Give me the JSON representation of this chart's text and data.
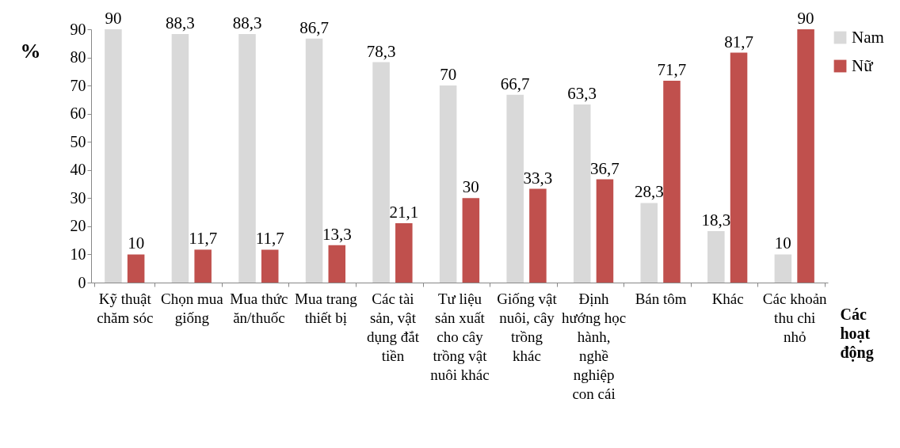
{
  "chart_data": {
    "type": "bar",
    "xlabel": "Các hoạt động",
    "ylabel": "%",
    "categories": [
      "Kỹ thuật chăm sóc",
      "Chọn mua giống",
      "Mua thức ăn/thuốc",
      "Mua trang thiết bị",
      "Các tài sản, vật dụng đắt tiền",
      "Tư liệu sản xuất cho cây trồng vật nuôi khác",
      "Giống vật nuôi, cây trồng khác",
      "Định hướng học hành, nghề nghiệp con cái",
      "Bán tôm",
      "Khác",
      "Các khoản thu chi nhỏ"
    ],
    "series": [
      {
        "name": "Nam",
        "color": "#d9d9d9",
        "values": [
          90,
          88.3,
          88.3,
          86.7,
          78.3,
          70,
          66.7,
          63.3,
          28.3,
          18.3,
          10
        ],
        "value_labels": [
          "90",
          "88,3",
          "88,3",
          "86,7",
          "78,3",
          "70",
          "66,7",
          "63,3",
          "28,3",
          "18,3",
          "10"
        ]
      },
      {
        "name": "Nữ",
        "color": "#c0504d",
        "values": [
          10,
          11.7,
          11.7,
          13.3,
          21.1,
          30,
          33.3,
          36.7,
          71.7,
          81.7,
          90
        ],
        "value_labels": [
          "10",
          "11,7",
          "11,7",
          "13,3",
          "21,1",
          "30",
          "33,3",
          "36,7",
          "71,7",
          "81,7",
          "90"
        ]
      }
    ],
    "ylim": [
      0,
      90
    ],
    "yticks": [
      0,
      10,
      20,
      30,
      40,
      50,
      60,
      70,
      80,
      90
    ],
    "grid": false,
    "legend": "right"
  }
}
